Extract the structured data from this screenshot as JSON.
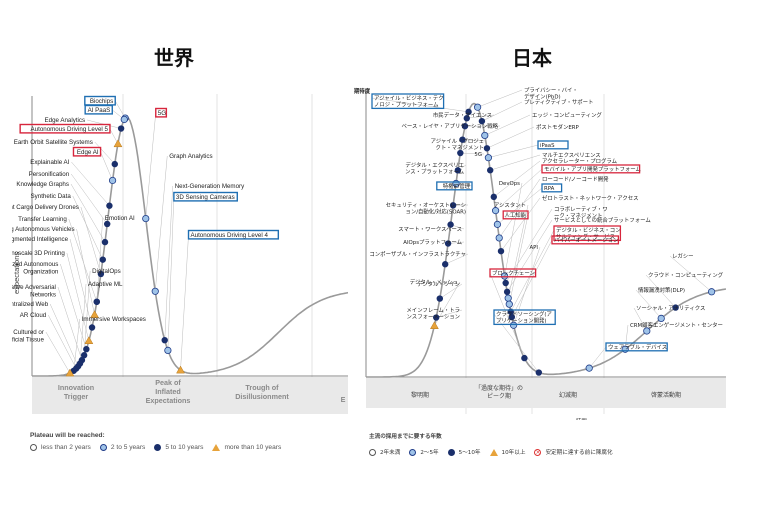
{
  "headings": {
    "world": "世界",
    "japan": "日本"
  },
  "chart_data": [
    {
      "type": "scatter",
      "title": "世界",
      "ylabel": "expectations",
      "xlabel": "time",
      "phases": [
        "Innovation Trigger",
        "Peak of Inflated Expectations",
        "Trough of Disillusionment",
        "E"
      ],
      "legend_title": "Plateau will be reached:",
      "legend": [
        "less than 2 years",
        "2 to 5 years",
        "5 to 10 years",
        "more than 10 years"
      ],
      "points": [
        {
          "label": "Biochips",
          "t": 0.295,
          "cat": "2 to 5 years",
          "box": "blue"
        },
        {
          "label": "AI PaaS",
          "t": 0.292,
          "cat": "2 to 5 years",
          "box": "blue"
        },
        {
          "label": "5G",
          "t": 0.36,
          "cat": "2 to 5 years",
          "box": "red"
        },
        {
          "label": "Edge Analytics",
          "t": 0.282,
          "cat": "5 to 10 years",
          "box": ""
        },
        {
          "label": "Autonomous Driving Level 5",
          "t": 0.272,
          "cat": "more than 10 years",
          "box": "red"
        },
        {
          "label": "Low Earth Orbit Satellite Systems",
          "t": 0.262,
          "cat": "5 to 10 years",
          "box": ""
        },
        {
          "label": "Edge AI",
          "t": 0.255,
          "cat": "2 to 5 years",
          "box": "red"
        },
        {
          "label": "Graph Analytics",
          "t": 0.39,
          "cat": "2 to 5 years",
          "box": ""
        },
        {
          "label": "Explainable AI",
          "t": 0.245,
          "cat": "5 to 10 years",
          "box": ""
        },
        {
          "label": "Personification",
          "t": 0.238,
          "cat": "5 to 10 years",
          "box": ""
        },
        {
          "label": "Knowledge Graphs",
          "t": 0.231,
          "cat": "5 to 10 years",
          "box": ""
        },
        {
          "label": "Next-Generation Memory",
          "t": 0.42,
          "cat": "5 to 10 years",
          "box": ""
        },
        {
          "label": "3D Sensing Cameras",
          "t": 0.43,
          "cat": "2 to 5 years",
          "box": "blue"
        },
        {
          "label": "Synthetic Data",
          "t": 0.224,
          "cat": "5 to 10 years",
          "box": ""
        },
        {
          "label": "Light Cargo Delivery Drones",
          "t": 0.218,
          "cat": "5 to 10 years",
          "box": ""
        },
        {
          "label": "Emotion AI",
          "t": 0.205,
          "cat": "5 to 10 years",
          "box": ""
        },
        {
          "label": "Transfer Learning",
          "t": 0.205,
          "cat": "5 to 10 years",
          "box": ""
        },
        {
          "label": "Flying Autonomous Vehicles",
          "t": 0.198,
          "cat": "more than 10 years",
          "box": ""
        },
        {
          "label": "Augmented Intelligence",
          "t": 0.19,
          "cat": "5 to 10 years",
          "box": ""
        },
        {
          "label": "Autonomous Driving Level 4",
          "t": 0.47,
          "cat": "more than 10 years",
          "box": "blue"
        },
        {
          "label": "Nanoscale 3D Printing",
          "t": 0.18,
          "cat": "more than 10 years",
          "box": ""
        },
        {
          "label": "Decentralized Autonomous Organization",
          "t": 0.172,
          "cat": "5 to 10 years",
          "box": ""
        },
        {
          "label": "DigitalOps",
          "t": 0.165,
          "cat": "5 to 10 years",
          "box": ""
        },
        {
          "label": "Generative Adversarial Networks",
          "t": 0.158,
          "cat": "5 to 10 years",
          "box": ""
        },
        {
          "label": "Adaptive ML",
          "t": 0.152,
          "cat": "5 to 10 years",
          "box": ""
        },
        {
          "label": "Decentralized Web",
          "t": 0.146,
          "cat": "5 to 10 years",
          "box": ""
        },
        {
          "label": "AR Cloud",
          "t": 0.14,
          "cat": "5 to 10 years",
          "box": ""
        },
        {
          "label": "Immersive Workspaces",
          "t": 0.132,
          "cat": "5 to 10 years",
          "box": ""
        },
        {
          "label": "Biotech — Cultured or Artificial Tissue",
          "t": 0.12,
          "cat": "more than 10 years",
          "box": ""
        }
      ]
    },
    {
      "type": "scatter",
      "title": "日本",
      "ylabel": "期待度",
      "xlabel": "時間",
      "phases": [
        "黎明期",
        "「過度な期待」のピーク期",
        "幻滅期",
        "啓蒙活動期"
      ],
      "legend_title": "主流の採用までに要する年数",
      "legend": [
        "2年未満",
        "2〜5年",
        "5〜10年",
        "10年以上",
        "安定期に達する前に陳腐化"
      ],
      "labels": [
        "アジャイル・ビジネス・テクノロジ・プラットフォーム",
        "プライバシー・バイ・デザイン(PbD)",
        "プレディクティブ・サポート",
        "市民データ・サイエンス",
        "エッジ・コンピューティング",
        "ベース・レイヤ・アプリケーション戦略",
        "ポストモダンERP",
        "アジャイル・プロジェクト・マネジメント",
        "iPaaS",
        "5G",
        "マルチエクスペリエンス",
        "アクセラレーター・プログラム",
        "デジタル・エクスペリエンス・プラットフォーム",
        "ローコード/ノーコード開発",
        "モバイル・アプリ開発プラットフォーム",
        "RPA",
        "ゼロトラスト・ネットワーク・アクセス",
        "特権ID管理",
        "DevOps",
        "コラボレーティブ・ワーク・マネジメント",
        "サービスとしての統合プラットフォーム",
        "セキュリティ・オーケストレーション/自動化/対応(SOAR)",
        "アシスタント",
        "人工知能",
        "デジタル・ビジネス・コンサルティング・サービス",
        "スマート・ワークスペース",
        "ハイパーオートメーション",
        "AIOpsプラットフォーム",
        "API",
        "コンポーザブル・インフラストラクチャ",
        "ブロックチェーン",
        "レガシー",
        "デジタル・ツイン",
        "クラウド・コンピューティング",
        "情報漏洩対策(DLP)",
        "メインフレーム・トランスフォーメーション",
        "クラウドソーシング(アプリケーション開発)",
        "ソーシャル・アナリティクス",
        "CRM顧客エンゲージメント・センター",
        "ウェアラブル・デバイス",
        "デジタル・メッシュ"
      ]
    }
  ],
  "world_boxes": {
    "red": "#d7263d",
    "blue": "#1f6fb2"
  }
}
